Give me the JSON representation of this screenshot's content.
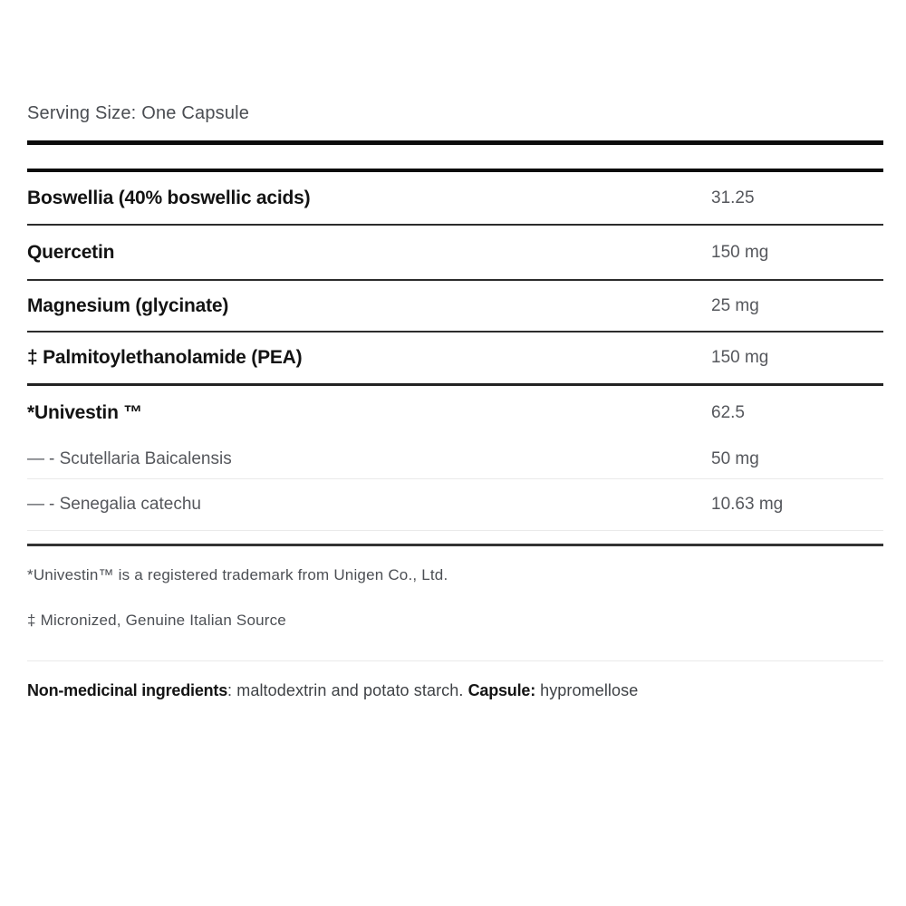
{
  "header": {
    "serving_size": "Serving Size: One Capsule"
  },
  "table": {
    "rows": [
      {
        "name": "Boswellia (40% boswellic acids)",
        "amount": "31.25"
      },
      {
        "name": "Quercetin",
        "amount": "150 mg"
      },
      {
        "name": "Magnesium (glycinate)",
        "amount": "25 mg"
      },
      {
        "name": "‡ Palmitoylethanolamide (PEA)",
        "amount": "150 mg"
      },
      {
        "name": "*Univestin ™",
        "amount": "62.5"
      },
      {
        "prefix": "—",
        "name": "- Scutellaria Baicalensis",
        "amount": "50 mg"
      },
      {
        "prefix": "—",
        "name": "- Senegalia catechu",
        "amount": "10.63 mg"
      }
    ]
  },
  "footnotes": [
    "*Univestin™ is a registered trademark from Unigen Co., Ltd.",
    "‡ Micronized, Genuine Italian Source"
  ],
  "non_medicinal": {
    "label": "Non-medicinal ingredients",
    "separator": ": ",
    "text": "maltodextrin and potato starch. ",
    "capsule_label": "Capsule:",
    "capsule_text": " hypromellose"
  },
  "colors": {
    "text_dark": "#131313",
    "text_gray": "#55575c",
    "divider_dark": "#2c2c2c",
    "divider_light": "#eaeaea",
    "line_heavy": "#0c0c0c"
  }
}
